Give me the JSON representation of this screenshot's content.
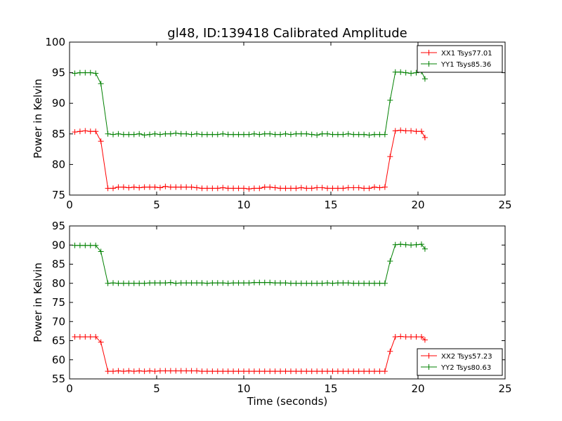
{
  "chart_data": [
    {
      "type": "line",
      "title": "gl48, ID:139418 Calibrated Amplitude",
      "xlabel": "",
      "ylabel": "Power in Kelvin",
      "xlim": [
        0,
        25
      ],
      "ylim": [
        75,
        100
      ],
      "xticks": [
        0,
        5,
        10,
        15,
        20,
        25
      ],
      "yticks": [
        75,
        80,
        85,
        90,
        95,
        100
      ],
      "legend_position": "top-right",
      "x": [
        0.3,
        0.6,
        0.9,
        1.2,
        1.5,
        1.8,
        2.2,
        2.5,
        2.8,
        3.1,
        3.4,
        3.7,
        4.0,
        4.3,
        4.6,
        4.9,
        5.2,
        5.5,
        5.8,
        6.1,
        6.4,
        6.7,
        7.0,
        7.3,
        7.6,
        7.9,
        8.2,
        8.5,
        8.8,
        9.1,
        9.4,
        9.7,
        10.0,
        10.3,
        10.6,
        10.9,
        11.2,
        11.5,
        11.8,
        12.1,
        12.4,
        12.7,
        13.0,
        13.3,
        13.6,
        13.9,
        14.2,
        14.5,
        14.8,
        15.1,
        15.4,
        15.7,
        16.0,
        16.3,
        16.6,
        16.9,
        17.2,
        17.5,
        17.8,
        18.1,
        18.4,
        18.7,
        19.0,
        19.3,
        19.6,
        19.9,
        20.2,
        20.4
      ],
      "series": [
        {
          "name": "XX1 Tsys77.01",
          "color": "#ff0000",
          "values": [
            85.3,
            85.4,
            85.5,
            85.4,
            85.4,
            83.8,
            76.1,
            76.1,
            76.3,
            76.3,
            76.2,
            76.3,
            76.2,
            76.3,
            76.3,
            76.3,
            76.2,
            76.4,
            76.3,
            76.3,
            76.3,
            76.3,
            76.3,
            76.2,
            76.1,
            76.1,
            76.1,
            76.1,
            76.2,
            76.1,
            76.1,
            76.1,
            76.1,
            76.0,
            76.1,
            76.1,
            76.3,
            76.3,
            76.2,
            76.1,
            76.1,
            76.1,
            76.1,
            76.2,
            76.1,
            76.1,
            76.2,
            76.2,
            76.1,
            76.1,
            76.1,
            76.1,
            76.2,
            76.2,
            76.2,
            76.1,
            76.1,
            76.3,
            76.2,
            76.3,
            81.3,
            85.5,
            85.6,
            85.5,
            85.5,
            85.4,
            85.4,
            84.4
          ]
        },
        {
          "name": "YY1 Tsys85.36",
          "color": "#008000",
          "values": [
            94.9,
            95.0,
            95.0,
            95.0,
            94.9,
            93.2,
            85.0,
            84.9,
            85.0,
            84.9,
            84.9,
            84.9,
            85.0,
            84.8,
            84.9,
            85.0,
            84.9,
            85.0,
            85.0,
            85.1,
            85.0,
            85.0,
            84.9,
            85.0,
            84.9,
            84.9,
            84.9,
            84.9,
            85.0,
            84.9,
            84.9,
            84.9,
            84.9,
            84.9,
            85.0,
            84.9,
            85.0,
            85.0,
            84.9,
            84.9,
            85.0,
            84.9,
            85.0,
            85.0,
            85.0,
            84.9,
            84.8,
            85.0,
            85.0,
            84.9,
            84.9,
            84.9,
            85.0,
            84.9,
            84.9,
            84.9,
            84.8,
            84.9,
            84.9,
            84.9,
            90.5,
            95.1,
            95.1,
            95.0,
            94.9,
            95.0,
            95.2,
            94.0
          ]
        }
      ]
    },
    {
      "type": "line",
      "title": "",
      "xlabel": "Time (seconds)",
      "ylabel": "Power in Kelvin",
      "xlim": [
        0,
        25
      ],
      "ylim": [
        55,
        95
      ],
      "xticks": [
        0,
        5,
        10,
        15,
        20,
        25
      ],
      "yticks": [
        55,
        60,
        65,
        70,
        75,
        80,
        85,
        90,
        95
      ],
      "legend_position": "bottom-right",
      "x": [
        0.3,
        0.6,
        0.9,
        1.2,
        1.5,
        1.8,
        2.2,
        2.5,
        2.8,
        3.1,
        3.4,
        3.7,
        4.0,
        4.3,
        4.6,
        4.9,
        5.2,
        5.5,
        5.8,
        6.1,
        6.4,
        6.7,
        7.0,
        7.3,
        7.6,
        7.9,
        8.2,
        8.5,
        8.8,
        9.1,
        9.4,
        9.7,
        10.0,
        10.3,
        10.6,
        10.9,
        11.2,
        11.5,
        11.8,
        12.1,
        12.4,
        12.7,
        13.0,
        13.3,
        13.6,
        13.9,
        14.2,
        14.5,
        14.8,
        15.1,
        15.4,
        15.7,
        16.0,
        16.3,
        16.6,
        16.9,
        17.2,
        17.5,
        17.8,
        18.1,
        18.4,
        18.7,
        19.0,
        19.3,
        19.6,
        19.9,
        20.2,
        20.4
      ],
      "series": [
        {
          "name": "XX2 Tsys57.23",
          "color": "#ff0000",
          "values": [
            66.0,
            66.0,
            66.0,
            66.0,
            66.0,
            64.6,
            57.0,
            57.0,
            57.1,
            57.0,
            57.1,
            57.0,
            57.1,
            57.0,
            57.1,
            57.0,
            57.1,
            57.1,
            57.1,
            57.1,
            57.1,
            57.1,
            57.1,
            57.1,
            57.0,
            57.0,
            57.0,
            57.0,
            57.0,
            57.0,
            57.0,
            57.0,
            57.0,
            57.0,
            57.0,
            57.0,
            57.0,
            57.0,
            57.0,
            57.0,
            57.0,
            57.0,
            57.0,
            57.0,
            57.0,
            57.0,
            57.0,
            57.0,
            57.0,
            57.0,
            57.0,
            57.0,
            57.0,
            57.0,
            57.0,
            57.0,
            57.0,
            57.0,
            57.0,
            57.0,
            62.2,
            66.0,
            66.1,
            66.0,
            66.0,
            66.0,
            66.0,
            65.2
          ]
        },
        {
          "name": "YY2 Tsys80.63",
          "color": "#008000",
          "values": [
            89.9,
            89.9,
            89.9,
            89.9,
            89.9,
            88.3,
            80.0,
            80.1,
            80.0,
            80.0,
            80.0,
            80.0,
            80.0,
            80.0,
            80.1,
            80.1,
            80.1,
            80.1,
            80.2,
            80.0,
            80.1,
            80.1,
            80.1,
            80.1,
            80.1,
            80.0,
            80.1,
            80.1,
            80.1,
            80.0,
            80.1,
            80.1,
            80.1,
            80.1,
            80.2,
            80.2,
            80.2,
            80.2,
            80.1,
            80.1,
            80.1,
            80.0,
            80.0,
            80.0,
            80.0,
            80.0,
            80.0,
            80.0,
            80.1,
            80.0,
            80.1,
            80.1,
            80.1,
            80.0,
            80.0,
            80.0,
            80.0,
            80.0,
            80.0,
            80.0,
            85.8,
            90.1,
            90.2,
            90.1,
            90.0,
            90.1,
            90.2,
            89.0
          ]
        }
      ]
    }
  ]
}
